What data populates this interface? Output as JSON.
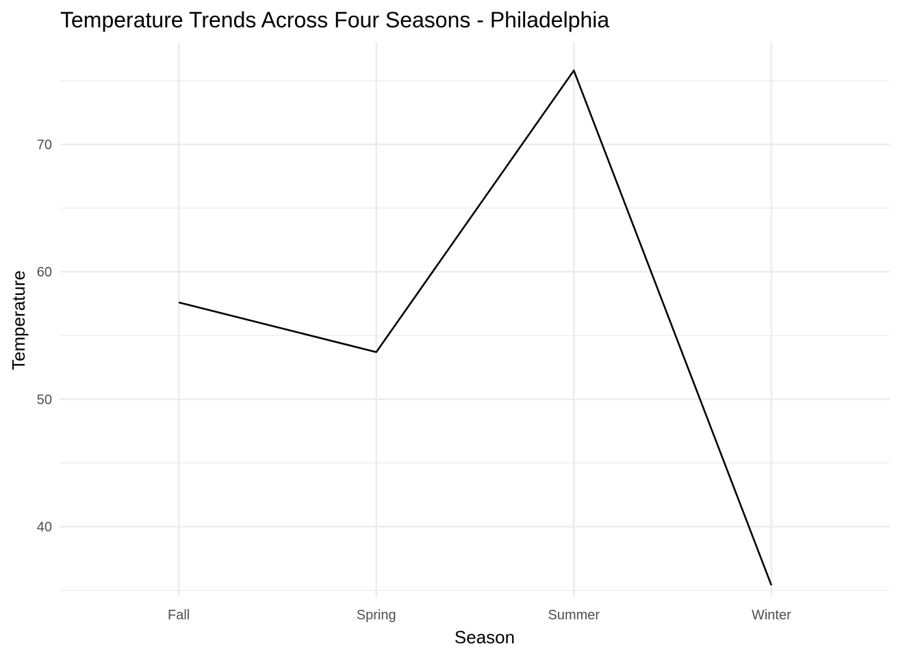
{
  "chart_data": {
    "type": "line",
    "title": "Temperature Trends Across Four Seasons - Philadelphia",
    "xlabel": "Season",
    "ylabel": "Temperature",
    "categories": [
      "Fall",
      "Spring",
      "Summer",
      "Winter"
    ],
    "values": [
      57.6,
      53.7,
      75.8,
      35.4
    ],
    "ylim": [
      34.5,
      78.0
    ],
    "y_major_ticks": [
      40,
      50,
      60,
      70
    ],
    "y_minor_ticks": [
      35,
      45,
      55,
      65,
      75
    ],
    "grid": true,
    "legend": "none",
    "line_color": "#000000",
    "grid_color": "#ebebeb"
  }
}
